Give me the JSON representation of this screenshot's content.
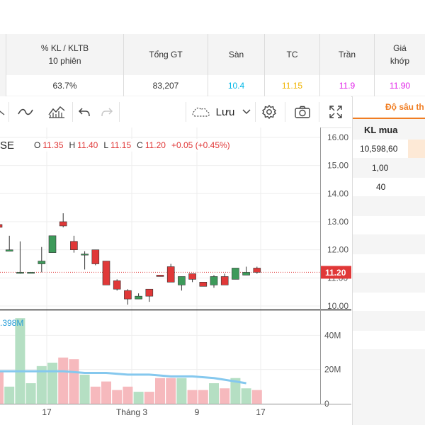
{
  "header": {
    "cols": [
      {
        "label": "% KL / KLTB\n10 phiên",
        "value": "63.7%",
        "color": "#333333"
      },
      {
        "label": "Tổng GT",
        "value": "83,207",
        "color": "#333333"
      },
      {
        "label": "Sàn",
        "value": "10.4",
        "color": "#00b6e6"
      },
      {
        "label": "TC",
        "value": "11.15",
        "color": "#f0b400"
      },
      {
        "label": "Trần",
        "value": "11.9",
        "color": "#e11ee8"
      },
      {
        "label": "Giá\nkhớp",
        "value": "11.90",
        "color": "#e11ee8"
      }
    ]
  },
  "toolbar": {
    "save_label": "Lưu"
  },
  "ohlc": {
    "symbol_tail": "SE",
    "o_label": "O",
    "o_value": "11.35",
    "h_label": "H",
    "h_value": "11.40",
    "l_label": "L",
    "l_value": "11.15",
    "c_label": "C",
    "c_value": "11.20",
    "change": "+0.05 (+0.45%)"
  },
  "volume_label": ".398M",
  "price_tag": "11.20",
  "depth": {
    "tab_label": "Độ sâu th",
    "col_header": "KL mua",
    "rows": [
      "10,598,60",
      "1,00",
      "40"
    ]
  },
  "colors": {
    "up": "#3d9a5a",
    "down": "#e03838",
    "up_vol": "#b5dfc3",
    "down_vol": "#f6b9bd",
    "ma": "#85c8ee",
    "accent": "#f07d22"
  },
  "chart_data": {
    "type": "candlestick",
    "price_axis": {
      "ticks": [
        "16.00",
        "15.00",
        "14.00",
        "13.00",
        "12.00",
        "11.00",
        "10.00"
      ],
      "range": [
        9.85,
        16.2
      ]
    },
    "volume_axis": {
      "ticks": [
        "40M",
        "20M",
        "0"
      ],
      "range": [
        0,
        48
      ]
    },
    "x_ticks": [
      "17",
      "Tháng 3",
      "9",
      "17"
    ],
    "last_price": 11.2,
    "candles": [
      {
        "o": 12.9,
        "h": 13.2,
        "l": 12.8,
        "c": 12.8
      },
      {
        "o": 11.95,
        "h": 12.5,
        "l": 11.95,
        "c": 12.0
      },
      {
        "o": 11.2,
        "h": 12.3,
        "l": 11.15,
        "c": 11.2
      },
      {
        "o": 11.2,
        "h": 11.2,
        "l": 11.2,
        "c": 11.2
      },
      {
        "o": 11.5,
        "h": 12.1,
        "l": 11.2,
        "c": 11.6
      },
      {
        "o": 11.9,
        "h": 12.5,
        "l": 11.9,
        "c": 12.5
      },
      {
        "o": 13.0,
        "h": 13.3,
        "l": 12.8,
        "c": 12.85
      },
      {
        "o": 12.3,
        "h": 12.5,
        "l": 11.9,
        "c": 12.0
      },
      {
        "o": 11.85,
        "h": 11.95,
        "l": 11.3,
        "c": 11.85
      },
      {
        "o": 12.0,
        "h": 12.0,
        "l": 11.45,
        "c": 11.5
      },
      {
        "o": 11.6,
        "h": 11.6,
        "l": 10.75,
        "c": 10.75
      },
      {
        "o": 10.9,
        "h": 10.95,
        "l": 10.55,
        "c": 10.6
      },
      {
        "o": 10.55,
        "h": 10.6,
        "l": 10.05,
        "c": 10.25
      },
      {
        "o": 10.25,
        "h": 10.45,
        "l": 10.25,
        "c": 10.35
      },
      {
        "o": 10.6,
        "h": 10.6,
        "l": 10.15,
        "c": 10.35
      },
      {
        "o": 11.1,
        "h": 11.1,
        "l": 11.05,
        "c": 11.05
      },
      {
        "o": 11.4,
        "h": 11.5,
        "l": 10.85,
        "c": 10.85
      },
      {
        "o": 10.75,
        "h": 11.05,
        "l": 10.55,
        "c": 11.05
      },
      {
        "o": 11.15,
        "h": 11.15,
        "l": 10.85,
        "c": 10.95
      },
      {
        "o": 10.85,
        "h": 10.85,
        "l": 10.7,
        "c": 10.7
      },
      {
        "o": 10.75,
        "h": 11.1,
        "l": 10.65,
        "c": 11.05
      },
      {
        "o": 11.05,
        "h": 11.15,
        "l": 10.75,
        "c": 10.75
      },
      {
        "o": 10.95,
        "h": 11.35,
        "l": 10.95,
        "c": 11.35
      },
      {
        "o": 11.1,
        "h": 11.4,
        "l": 11.1,
        "c": 11.2
      },
      {
        "o": 11.35,
        "h": 11.4,
        "l": 11.15,
        "c": 11.2
      }
    ],
    "volumes": [
      19,
      10,
      50,
      12,
      22,
      24,
      27,
      26,
      17,
      10,
      13,
      8,
      10,
      7,
      7,
      15,
      15,
      15,
      8,
      8,
      12,
      9,
      15,
      9,
      8
    ],
    "volume_ma": [
      {
        "i": 2,
        "v": 19
      },
      {
        "i": 4,
        "v": 19
      },
      {
        "i": 6,
        "v": 19
      },
      {
        "i": 8,
        "v": 18
      },
      {
        "i": 10,
        "v": 18
      },
      {
        "i": 12,
        "v": 17
      },
      {
        "i": 14,
        "v": 17
      },
      {
        "i": 16,
        "v": 16
      },
      {
        "i": 18,
        "v": 16
      },
      {
        "i": 20,
        "v": 15
      },
      {
        "i": 21,
        "v": 14
      },
      {
        "i": 23,
        "v": 12
      }
    ]
  }
}
